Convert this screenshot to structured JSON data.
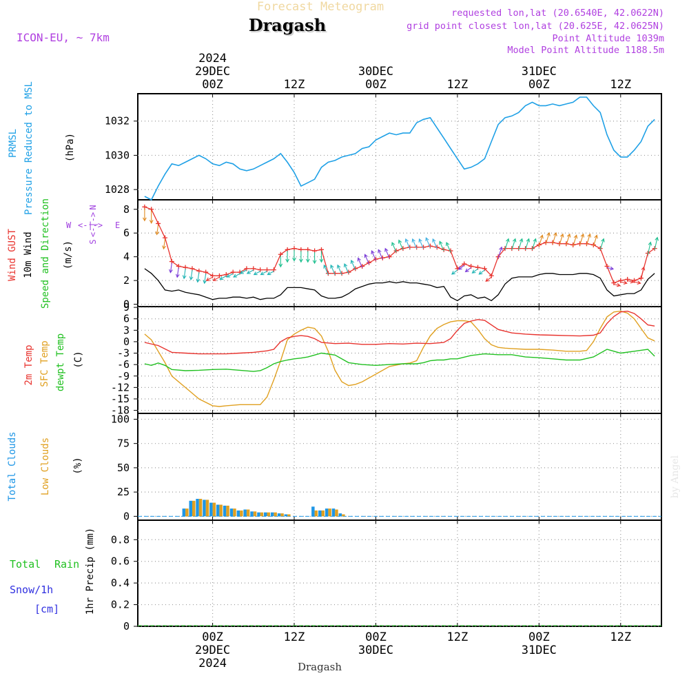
{
  "header": {
    "subtitle": "Forecast Meteogram",
    "location": "Dragash",
    "model": "ICON-EU, ~ 7km",
    "requested": "requested lon,lat (20.6540E, 42.0622N)",
    "gridpoint": "grid point closest lon,lat (20.625E, 42.0625N)",
    "point_alt": "Point Altitude 1039m",
    "model_alt": "Model Point Altitude 1188.5m"
  },
  "footer": {
    "location": "Dragash",
    "credit": "by Angel"
  },
  "colors": {
    "pressure": "#1ea0e6",
    "gust": "#e8322d",
    "wind": "#000000",
    "dir_label": "#a040e0",
    "t2m": "#e8322d",
    "sfc": "#e0a020",
    "dewpt": "#20c020",
    "total_cloud": "#1e96e6",
    "low_cloud": "#e0a020",
    "rain": "#20c020",
    "snow": "#3030e0",
    "title": "#f0d8a0",
    "info": "#b040e0"
  },
  "time_axis": {
    "top_rows": [
      {
        "hour": 0,
        "lines": [
          "2024",
          "29DEC",
          "00Z"
        ]
      },
      {
        "hour": 12,
        "lines": [
          "12Z"
        ]
      },
      {
        "hour": 24,
        "lines": [
          "30DEC",
          "00Z"
        ]
      },
      {
        "hour": 36,
        "lines": [
          "12Z"
        ]
      },
      {
        "hour": 48,
        "lines": [
          "31DEC",
          "00Z"
        ]
      },
      {
        "hour": 60,
        "lines": [
          "12Z"
        ]
      }
    ],
    "bottom_rows": [
      {
        "hour": 0,
        "lines": [
          "00Z",
          "29DEC",
          "2024"
        ]
      },
      {
        "hour": 12,
        "lines": [
          "12Z"
        ]
      },
      {
        "hour": 24,
        "lines": [
          "00Z",
          "30DEC"
        ]
      },
      {
        "hour": 36,
        "lines": [
          "12Z"
        ]
      },
      {
        "hour": 48,
        "lines": [
          "00Z",
          "31DEC"
        ]
      },
      {
        "hour": 60,
        "lines": [
          "12Z"
        ]
      }
    ]
  },
  "chart_data": [
    {
      "type": "line",
      "id": "pressure",
      "labels": [
        "PRMSL",
        "Pressure Reduced to MSL",
        "(hPa)"
      ],
      "yticks": [
        1028,
        1030,
        1032
      ],
      "ylim": [
        1027.4,
        1033.6
      ],
      "xlim": [
        -11,
        66
      ],
      "series": [
        {
          "name": "PRMSL",
          "x": [
            -10,
            -9,
            -8,
            -7,
            -6,
            -5,
            -4,
            -3,
            -2,
            -1,
            0,
            1,
            2,
            3,
            4,
            5,
            6,
            7,
            8,
            9,
            10,
            11,
            12,
            13,
            14,
            15,
            16,
            17,
            18,
            19,
            20,
            21,
            22,
            23,
            24,
            25,
            26,
            27,
            28,
            29,
            30,
            31,
            32,
            33,
            34,
            35,
            36,
            37,
            38,
            39,
            40,
            41,
            42,
            43,
            44,
            45,
            46,
            47,
            48,
            49,
            50,
            51,
            52,
            53,
            54,
            55,
            56,
            57,
            58,
            59,
            60,
            61,
            62,
            63,
            64,
            65
          ],
          "values": [
            1027.6,
            1027.4,
            1028.2,
            1028.9,
            1029.5,
            1029.4,
            1029.6,
            1029.8,
            1030.0,
            1029.8,
            1029.5,
            1029.4,
            1029.6,
            1029.5,
            1029.2,
            1029.1,
            1029.2,
            1029.4,
            1029.6,
            1029.8,
            1030.1,
            1029.6,
            1029.0,
            1028.2,
            1028.4,
            1028.6,
            1029.3,
            1029.6,
            1029.7,
            1029.9,
            1030.0,
            1030.1,
            1030.4,
            1030.5,
            1030.9,
            1031.1,
            1031.3,
            1031.2,
            1031.3,
            1031.3,
            1031.9,
            1032.1,
            1032.2,
            1031.6,
            1031.0,
            1030.4,
            1029.8,
            1029.2,
            1029.3,
            1029.5,
            1029.8,
            1030.8,
            1031.8,
            1032.2,
            1032.3,
            1032.5,
            1032.9,
            1033.1,
            1032.9,
            1032.9,
            1033.0,
            1032.9,
            1033.0,
            1033.1,
            1033.4,
            1033.4,
            1032.9,
            1032.5,
            1031.2,
            1030.3,
            1029.9,
            1029.9,
            1030.3,
            1030.8,
            1031.7,
            1032.1
          ]
        }
      ]
    },
    {
      "type": "line",
      "id": "wind",
      "labels": [
        "Wind GUST",
        "10m Wind",
        "Speed and Direction",
        "(m/s)"
      ],
      "direction_legend": {
        "n": "N",
        "s": "S",
        "w": "W",
        "e": "E"
      },
      "yticks": [
        0,
        2,
        4,
        6,
        8
      ],
      "ylim": [
        -0.2,
        8.8
      ],
      "xlim": [
        -11,
        66
      ],
      "series": [
        {
          "name": "Wind GUST",
          "x": [
            -10,
            -9,
            -8,
            -7,
            -6,
            -5,
            -4,
            -3,
            -2,
            -1,
            0,
            1,
            2,
            3,
            4,
            5,
            6,
            7,
            8,
            9,
            10,
            11,
            12,
            13,
            14,
            15,
            16,
            17,
            18,
            19,
            20,
            21,
            22,
            23,
            24,
            25,
            26,
            27,
            28,
            29,
            30,
            31,
            32,
            33,
            34,
            35,
            36,
            37,
            38,
            39,
            40,
            41,
            42,
            43,
            44,
            45,
            46,
            47,
            48,
            49,
            50,
            51,
            52,
            53,
            54,
            55,
            56,
            57,
            58,
            59,
            60,
            61,
            62,
            63,
            64,
            65
          ],
          "values": [
            8.2,
            8.0,
            6.8,
            5.6,
            3.6,
            3.2,
            3.1,
            3.0,
            2.8,
            2.7,
            2.4,
            2.4,
            2.5,
            2.7,
            2.7,
            3.0,
            3.0,
            2.9,
            2.9,
            2.9,
            4.2,
            4.6,
            4.7,
            4.6,
            4.6,
            4.5,
            4.6,
            2.6,
            2.6,
            2.6,
            2.7,
            3.0,
            3.2,
            3.5,
            3.8,
            3.9,
            4.0,
            4.5,
            4.7,
            4.8,
            4.8,
            4.8,
            4.9,
            4.8,
            4.6,
            4.5,
            3.0,
            3.4,
            3.2,
            3.1,
            3.0,
            2.4,
            4.0,
            4.7,
            4.7,
            4.7,
            4.7,
            4.7,
            5.0,
            5.2,
            5.2,
            5.1,
            5.1,
            5.0,
            5.1,
            5.1,
            5.0,
            4.7,
            3.2,
            1.8,
            2.0,
            2.1,
            2.0,
            2.2,
            4.3,
            4.7
          ]
        },
        {
          "name": "10m Wind",
          "x": [
            -10,
            -9,
            -8,
            -7,
            -6,
            -5,
            -4,
            -3,
            -2,
            -1,
            0,
            1,
            2,
            3,
            4,
            5,
            6,
            7,
            8,
            9,
            10,
            11,
            12,
            13,
            14,
            15,
            16,
            17,
            18,
            19,
            20,
            21,
            22,
            23,
            24,
            25,
            26,
            27,
            28,
            29,
            30,
            31,
            32,
            33,
            34,
            35,
            36,
            37,
            38,
            39,
            40,
            41,
            42,
            43,
            44,
            45,
            46,
            47,
            48,
            49,
            50,
            51,
            52,
            53,
            54,
            55,
            56,
            57,
            58,
            59,
            60,
            61,
            62,
            63,
            64,
            65
          ],
          "values": [
            3.0,
            2.6,
            2.0,
            1.2,
            1.1,
            1.2,
            1.0,
            0.9,
            0.8,
            0.6,
            0.4,
            0.5,
            0.5,
            0.6,
            0.6,
            0.5,
            0.6,
            0.4,
            0.5,
            0.5,
            0.8,
            1.4,
            1.4,
            1.4,
            1.3,
            1.2,
            0.7,
            0.5,
            0.5,
            0.6,
            0.9,
            1.3,
            1.5,
            1.7,
            1.8,
            1.8,
            1.9,
            1.8,
            1.9,
            1.8,
            1.8,
            1.7,
            1.6,
            1.4,
            1.5,
            0.6,
            0.3,
            0.7,
            0.8,
            0.5,
            0.6,
            0.3,
            0.8,
            1.7,
            2.2,
            2.3,
            2.3,
            2.3,
            2.5,
            2.6,
            2.6,
            2.5,
            2.5,
            2.5,
            2.6,
            2.6,
            2.5,
            2.2,
            1.2,
            0.7,
            0.8,
            0.9,
            0.9,
            1.2,
            2.1,
            2.6
          ]
        }
      ]
    },
    {
      "type": "line",
      "id": "temperature",
      "labels": [
        "2m Temp",
        "SFC Temp",
        "dewpt Temp",
        "(C)"
      ],
      "yticks": [
        -18,
        -15,
        -12,
        -9,
        -6,
        -3,
        0,
        3,
        6,
        9
      ],
      "ylim": [
        -18.8,
        9.2
      ],
      "xlim": [
        -11,
        66
      ],
      "series": [
        {
          "name": "2m Temp",
          "x": [
            -10,
            -8,
            -6,
            -4,
            -2,
            0,
            2,
            4,
            6,
            8,
            9,
            10,
            11,
            12,
            13,
            14,
            15,
            16,
            18,
            20,
            22,
            24,
            26,
            28,
            30,
            32,
            34,
            35,
            36,
            37,
            38,
            39,
            40,
            42,
            44,
            46,
            48,
            50,
            52,
            54,
            56,
            57,
            58,
            59,
            60,
            61,
            62,
            63,
            64,
            65
          ],
          "values": [
            -0.2,
            -1.0,
            -2.8,
            -3.0,
            -3.2,
            -3.2,
            -3.2,
            -3.0,
            -2.8,
            -2.4,
            -2.0,
            0.0,
            1.0,
            1.4,
            1.6,
            1.4,
            0.8,
            -0.2,
            -0.5,
            -0.4,
            -0.7,
            -0.7,
            -0.5,
            -0.6,
            -0.4,
            -0.5,
            -0.2,
            0.8,
            3.0,
            4.8,
            5.4,
            5.8,
            5.6,
            3.2,
            2.3,
            2.0,
            1.8,
            1.7,
            1.6,
            1.5,
            1.7,
            2.3,
            4.8,
            6.6,
            7.8,
            8.0,
            7.4,
            6.0,
            4.4,
            4.1
          ]
        },
        {
          "name": "SFC Temp",
          "x": [
            -10,
            -9,
            -8,
            -7,
            -6,
            -4,
            -2,
            0,
            1,
            2,
            4,
            6,
            7,
            8,
            9,
            10,
            11,
            12,
            13,
            14,
            15,
            16,
            17,
            18,
            19,
            20,
            21,
            22,
            23,
            24,
            26,
            28,
            29,
            30,
            31,
            32,
            33,
            34,
            35,
            36,
            37,
            38,
            39,
            40,
            41,
            42,
            43,
            44,
            46,
            48,
            50,
            52,
            54,
            55,
            56,
            57,
            58,
            59,
            60,
            61,
            62,
            63,
            64,
            65
          ],
          "values": [
            2.0,
            0.5,
            -2.5,
            -5.5,
            -9.0,
            -12.0,
            -15.0,
            -16.8,
            -17.0,
            -16.8,
            -16.5,
            -16.5,
            -16.5,
            -14.5,
            -10.0,
            -5.0,
            0.5,
            2.0,
            3.0,
            3.8,
            3.5,
            1.5,
            -2.5,
            -7.5,
            -10.5,
            -11.5,
            -11.2,
            -10.5,
            -9.5,
            -8.5,
            -6.5,
            -5.8,
            -5.6,
            -5.0,
            -1.5,
            1.5,
            3.5,
            4.5,
            5.2,
            5.5,
            5.5,
            5.2,
            3.2,
            0.8,
            -0.8,
            -1.5,
            -1.7,
            -1.8,
            -2.0,
            -2.0,
            -2.2,
            -2.5,
            -2.5,
            -2.3,
            0.0,
            3.5,
            6.5,
            7.8,
            8.0,
            7.5,
            6.0,
            3.5,
            1.0,
            0.2
          ]
        },
        {
          "name": "dewpt Temp",
          "x": [
            -10,
            -9,
            -8,
            -7,
            -6,
            -4,
            -2,
            0,
            2,
            4,
            6,
            7,
            8,
            9,
            10,
            11,
            12,
            13,
            14,
            15,
            16,
            18,
            20,
            22,
            24,
            26,
            28,
            30,
            31,
            32,
            33,
            34,
            35,
            36,
            38,
            40,
            42,
            44,
            46,
            48,
            50,
            52,
            54,
            56,
            58,
            60,
            62,
            64,
            65
          ],
          "values": [
            -5.8,
            -6.2,
            -5.6,
            -6.2,
            -7.3,
            -7.6,
            -7.5,
            -7.3,
            -7.2,
            -7.5,
            -7.8,
            -7.6,
            -6.8,
            -5.8,
            -5.2,
            -4.8,
            -4.5,
            -4.3,
            -4.0,
            -3.5,
            -3.0,
            -3.5,
            -5.5,
            -6.0,
            -6.2,
            -6.0,
            -5.8,
            -5.8,
            -5.5,
            -5.0,
            -4.8,
            -4.8,
            -4.5,
            -4.5,
            -3.6,
            -3.2,
            -3.4,
            -3.4,
            -4.0,
            -4.2,
            -4.5,
            -4.8,
            -4.8,
            -4.0,
            -2.0,
            -3.0,
            -2.5,
            -2.0,
            -3.8
          ]
        }
      ]
    },
    {
      "type": "bar",
      "id": "clouds",
      "labels": [
        "Total Clouds",
        "Low Clouds",
        "(%)"
      ],
      "yticks": [
        0,
        25,
        50,
        75,
        100
      ],
      "ylim": [
        -4,
        106
      ],
      "xlim": [
        -11,
        66
      ],
      "categories": [
        -4,
        -3,
        -2,
        -1,
        0,
        1,
        2,
        3,
        4,
        5,
        6,
        7,
        8,
        9,
        10,
        11,
        15,
        16,
        17,
        18,
        19
      ],
      "series": [
        {
          "name": "Total Clouds",
          "values": [
            8,
            16,
            18,
            17,
            14,
            12,
            11,
            8,
            6,
            7,
            5,
            4,
            4,
            4,
            3,
            2,
            10,
            6,
            8,
            8,
            3
          ]
        },
        {
          "name": "Low Clouds",
          "values": [
            8,
            16,
            18,
            17,
            14,
            12,
            11,
            8,
            6,
            7,
            5,
            4,
            4,
            4,
            3,
            2,
            6,
            6,
            8,
            7,
            2
          ]
        }
      ]
    },
    {
      "type": "bar",
      "id": "precip",
      "labels": [
        "Total",
        "Rain",
        "Snow/1h",
        "[cm]",
        "1hr Precip (mm)"
      ],
      "yticks": [
        "0",
        "0.2",
        "0.4",
        "0.6",
        "0.8"
      ],
      "ylim": [
        0,
        0.98
      ],
      "xlim": [
        -11,
        66
      ],
      "categories": [],
      "series": [
        {
          "name": "Total Rain",
          "values": []
        }
      ]
    }
  ]
}
